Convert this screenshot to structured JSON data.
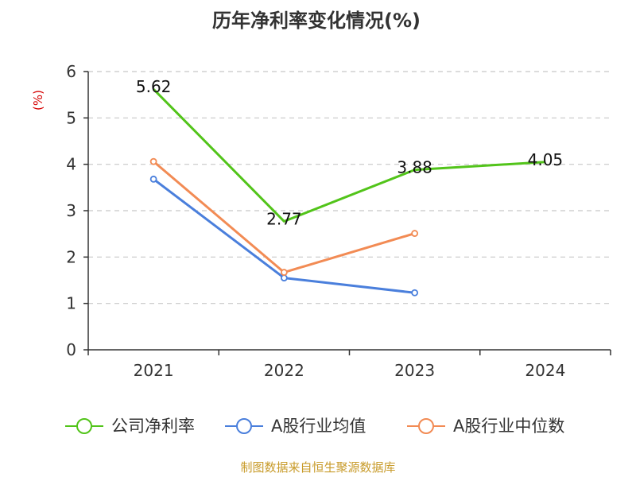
{
  "chart_data": {
    "type": "line",
    "title": "历年净利率变化情况(%)",
    "ylabel": "(%)",
    "categories": [
      "2021",
      "2022",
      "2023",
      "2024"
    ],
    "ylim": [
      0,
      6
    ],
    "yticks": [
      "0",
      "1",
      "2",
      "3",
      "4",
      "5",
      "6"
    ],
    "grid": true,
    "legend_position": "bottom",
    "series": [
      {
        "name": "公司净利率",
        "color": "#52c41a",
        "values": [
          5.62,
          2.77,
          3.88,
          4.05
        ],
        "labels": [
          "5.62",
          "2.77",
          "3.88",
          "4.05"
        ]
      },
      {
        "name": "A股行业均值",
        "color": "#4a7fdc",
        "values": [
          3.68,
          1.55,
          1.23,
          null
        ]
      },
      {
        "name": "A股行业中位数",
        "color": "#f28b54",
        "values": [
          4.06,
          1.67,
          2.51,
          null
        ]
      }
    ],
    "ylabel_color": "#d60000"
  },
  "source": {
    "text": "制图数据来自恒生聚源数据库",
    "color": "#c89b2a"
  }
}
